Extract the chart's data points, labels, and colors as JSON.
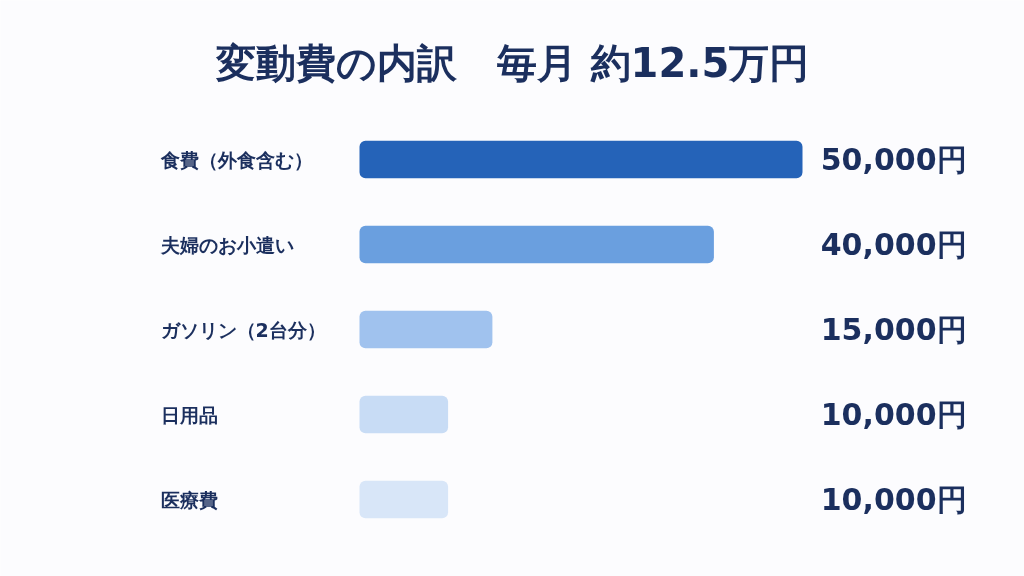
{
  "chart_data": {
    "type": "bar",
    "orientation": "horizontal",
    "title": "変動費の内訳　毎月 約12.5万円",
    "categories": [
      "食費（外食含む）",
      "夫婦のお小遣い",
      "ガソリン（2台分）",
      "日用品",
      "医療費"
    ],
    "values": [
      50000,
      40000,
      15000,
      10000,
      10000
    ],
    "colors": [
      "#2563b8",
      "#6a9fdf",
      "#a0c2ee",
      "#c8dcf5",
      "#d8e6f8"
    ],
    "value_labels": [
      "50,000円",
      "40,000円",
      "15,000円",
      "10,000円",
      "10,000円"
    ]
  }
}
